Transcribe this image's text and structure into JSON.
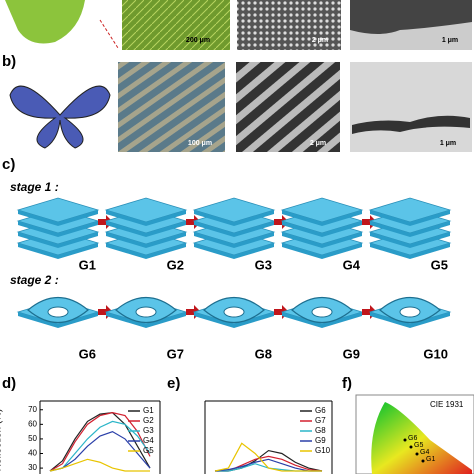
{
  "figure": {
    "a": {
      "scale_bars": [
        "200 μm",
        "2 μm",
        "1 μm"
      ]
    },
    "b": {
      "label": "b)",
      "scale_bars": [
        "100 μm",
        "2 μm",
        "1 μm"
      ]
    },
    "c": {
      "label": "c)",
      "stage1": "stage 1 :",
      "stage2": "stage 2 :",
      "structures": [
        "G1",
        "G2",
        "G3",
        "G4",
        "G5",
        "G6",
        "G7",
        "G8",
        "G9",
        "G10"
      ]
    },
    "f": {
      "label": "f)",
      "title": "CIE 1931",
      "points": [
        "G6",
        "G5",
        "G4",
        "G1"
      ]
    }
  },
  "chart_data": [
    {
      "type": "line",
      "panel_label": "d)",
      "ylabel": "Reflection (%)",
      "ylim": [
        28,
        76
      ],
      "yticks": [
        30,
        40,
        50,
        60,
        70
      ],
      "series": [
        {
          "name": "G1",
          "color": "#222222",
          "values": [
            28,
            35,
            50,
            62,
            67,
            68,
            60,
            45,
            30
          ]
        },
        {
          "name": "G2",
          "color": "#d2202f",
          "values": [
            28,
            33,
            48,
            60,
            66,
            68,
            66,
            55,
            38
          ]
        },
        {
          "name": "G3",
          "color": "#2bb5c8",
          "values": [
            28,
            30,
            40,
            50,
            58,
            62,
            60,
            52,
            40
          ]
        },
        {
          "name": "G4",
          "color": "#2a3fa8",
          "values": [
            28,
            30,
            36,
            45,
            52,
            55,
            50,
            40,
            30
          ]
        },
        {
          "name": "G5",
          "color": "#e8c400",
          "values": [
            28,
            30,
            33,
            36,
            34,
            30,
            28,
            28,
            28
          ]
        }
      ]
    },
    {
      "type": "line",
      "panel_label": "e)",
      "ylim": [
        28,
        76
      ],
      "series": [
        {
          "name": "G6",
          "color": "#222222",
          "values": [
            28,
            28,
            30,
            35,
            42,
            40,
            34,
            30,
            28
          ]
        },
        {
          "name": "G7",
          "color": "#d2202f",
          "values": [
            28,
            28,
            32,
            36,
            38,
            36,
            32,
            29,
            28
          ]
        },
        {
          "name": "G8",
          "color": "#2bb5c8",
          "values": [
            28,
            28,
            30,
            33,
            30,
            29,
            28,
            28,
            28
          ]
        },
        {
          "name": "G9",
          "color": "#2a3fa8",
          "values": [
            28,
            29,
            31,
            34,
            36,
            33,
            30,
            28,
            28
          ]
        },
        {
          "name": "G10",
          "color": "#e8c400",
          "values": [
            28,
            30,
            47,
            40,
            30,
            28,
            28,
            28,
            28
          ]
        }
      ]
    }
  ]
}
